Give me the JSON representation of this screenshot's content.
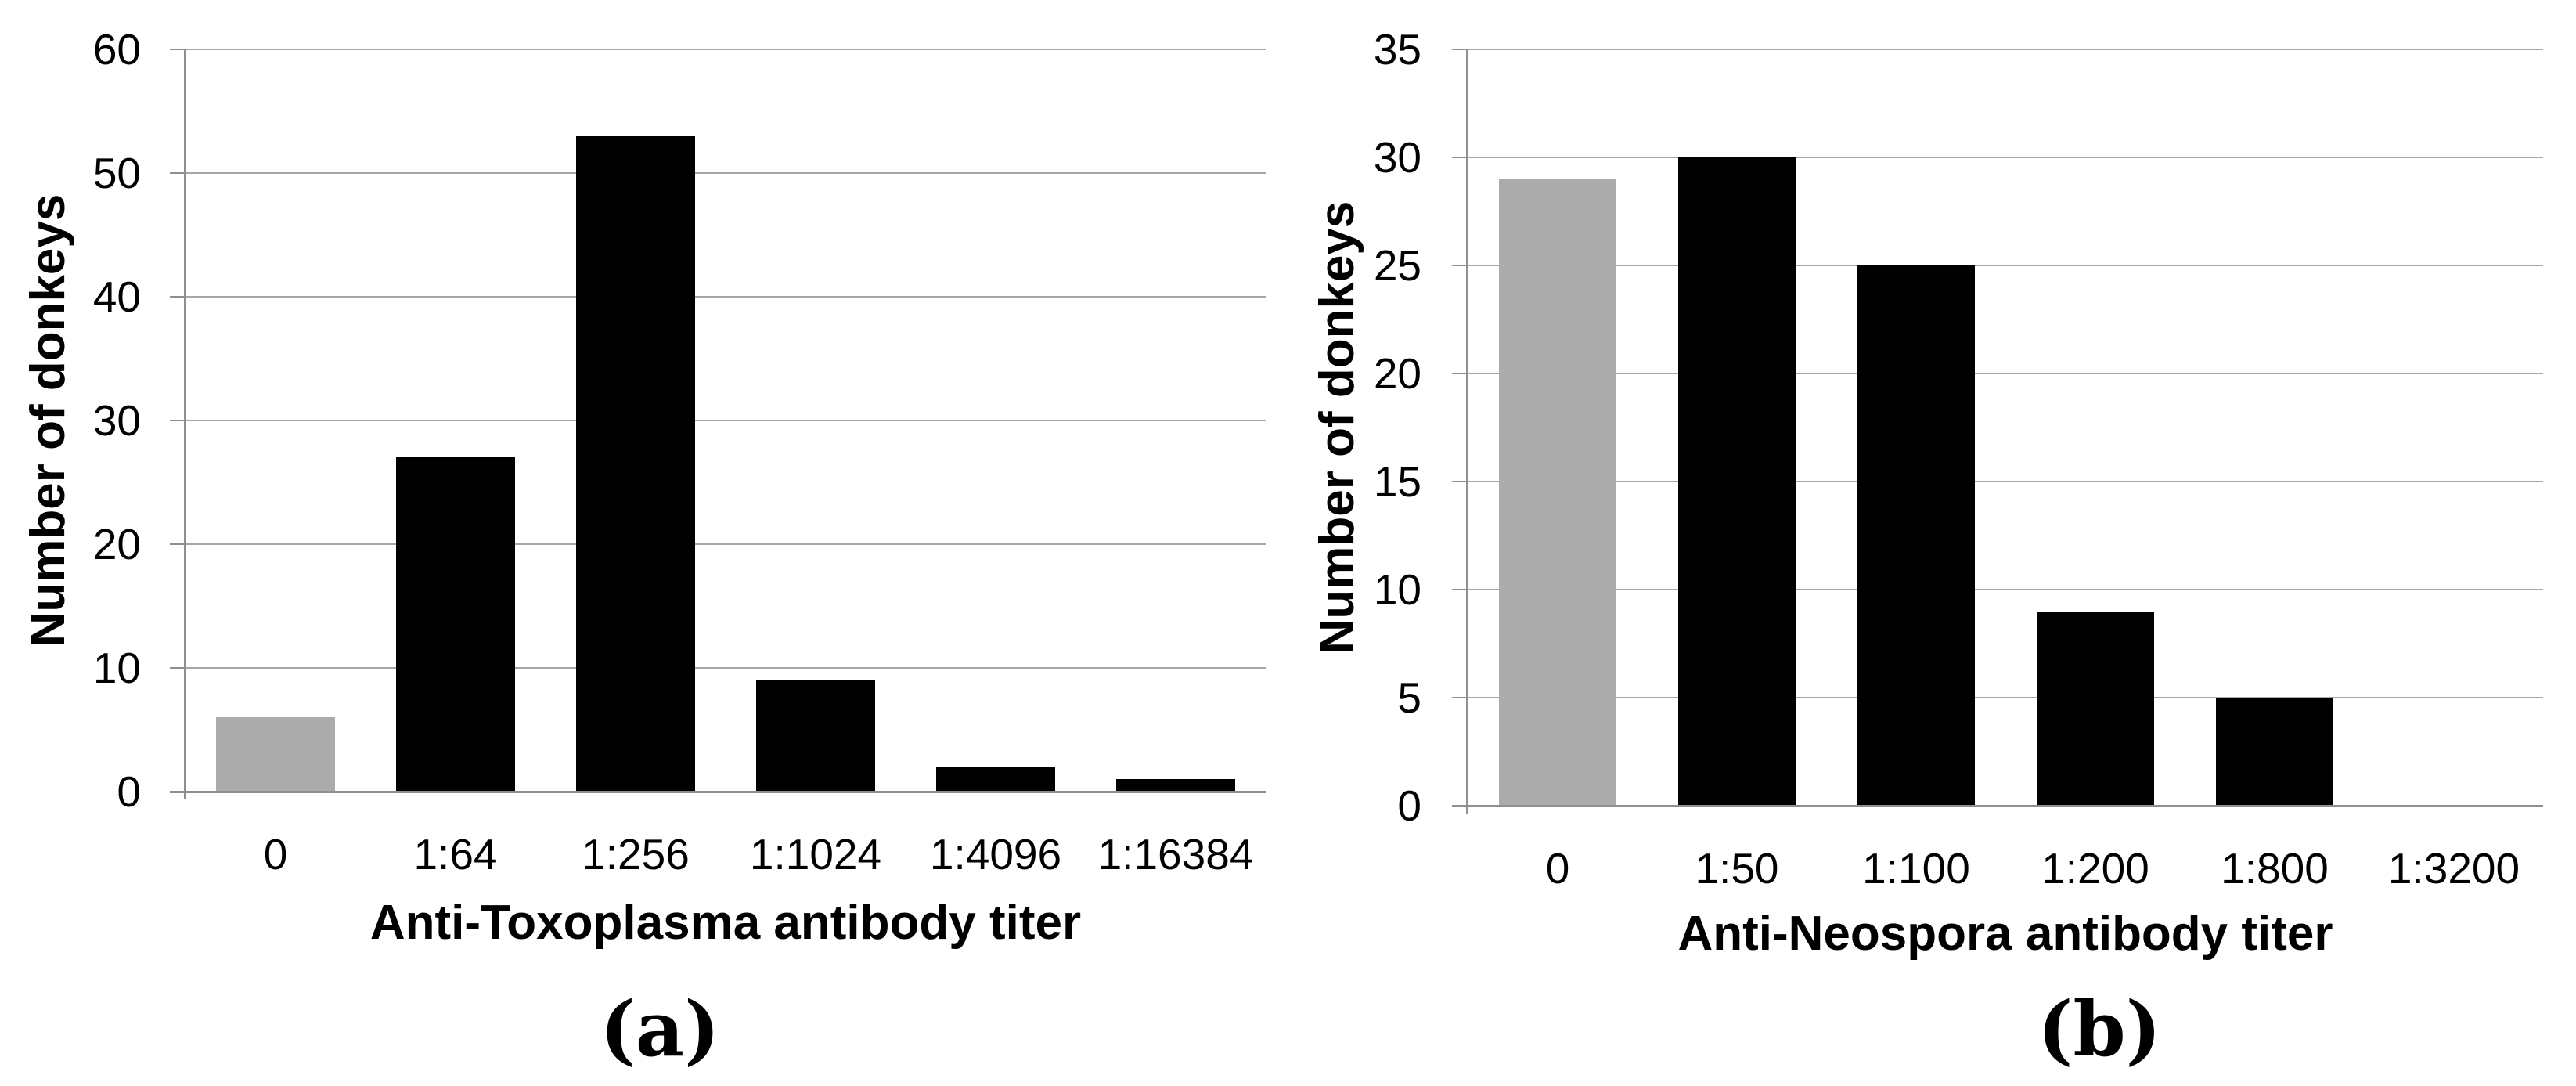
{
  "colors": {
    "bar_black": "#000000",
    "bar_zero_titer_gray": "#ABABAB",
    "gridline_gray": "#A6A6A6",
    "axis_gray": "#8F8F8F"
  },
  "chart_data": [
    {
      "type": "bar",
      "panel_label": "(a)",
      "title": "",
      "xlabel": "Anti-Toxoplasma antibody titer",
      "ylabel": "Number of donkeys",
      "categories": [
        "0",
        "1:64",
        "1:256",
        "1:1024",
        "1:4096",
        "1:16384"
      ],
      "values": [
        6,
        27,
        53,
        9,
        2,
        1
      ],
      "bar_colors": [
        "#ABABAB",
        "#000000",
        "#000000",
        "#000000",
        "#000000",
        "#000000"
      ],
      "ylim": [
        0,
        60
      ],
      "yticks": [
        0,
        10,
        20,
        30,
        40,
        50,
        60
      ],
      "grid": "horizontal",
      "legend": "none"
    },
    {
      "type": "bar",
      "panel_label": "(b)",
      "title": "",
      "xlabel": "Anti-Neospora antibody titer",
      "ylabel": "Number of donkeys",
      "categories": [
        "0",
        "1:50",
        "1:100",
        "1:200",
        "1:800",
        "1:3200"
      ],
      "values": [
        29,
        30,
        25,
        9,
        5,
        0
      ],
      "bar_colors": [
        "#ABABAB",
        "#000000",
        "#000000",
        "#000000",
        "#000000",
        "#000000"
      ],
      "ylim": [
        0,
        35
      ],
      "yticks": [
        0,
        5,
        10,
        15,
        20,
        25,
        30,
        35
      ],
      "grid": "horizontal",
      "legend": "none"
    }
  ]
}
